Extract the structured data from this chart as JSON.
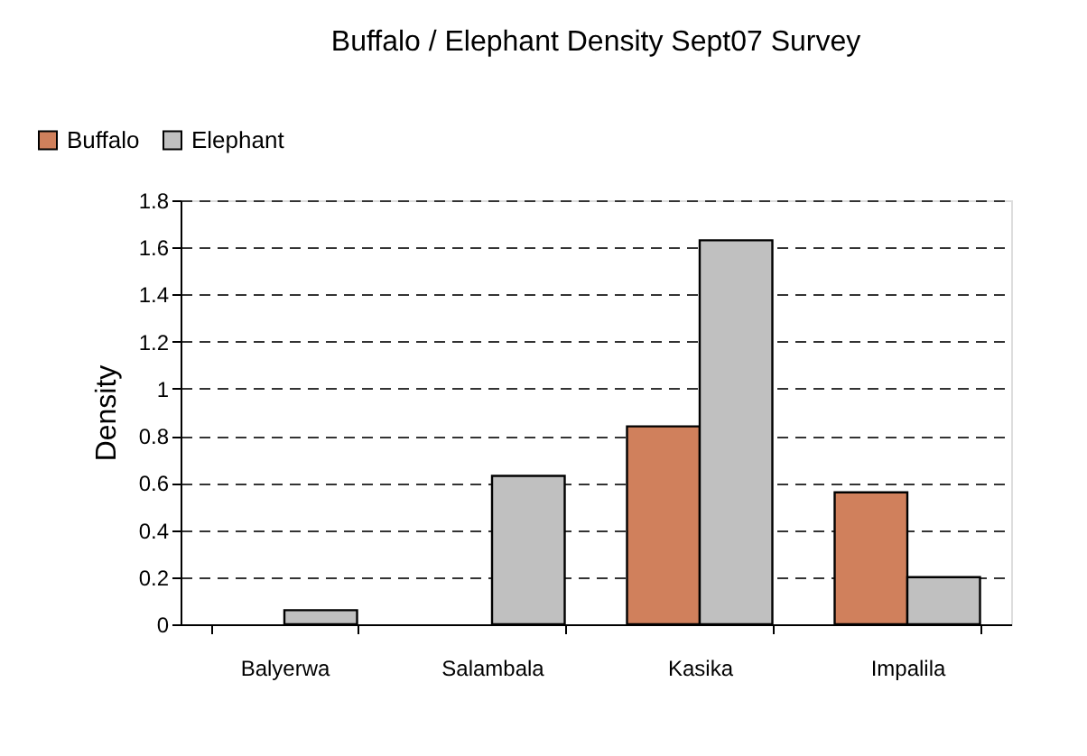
{
  "chart_data": {
    "type": "bar",
    "title": "Buffalo / Elephant Density Sept07 Survey",
    "ylabel": "Density",
    "categories": [
      "Balyerwa",
      "Salambala",
      "Kasika",
      "Impalila"
    ],
    "series": [
      {
        "name": "Buffalo",
        "color": "#d0805c",
        "values": [
          null,
          null,
          0.84,
          0.56
        ]
      },
      {
        "name": "Elephant",
        "color": "#c0c0c0",
        "values": [
          0.06,
          0.63,
          1.63,
          0.2
        ]
      }
    ],
    "ylim": [
      0,
      1.8
    ],
    "yticks": [
      0,
      0.2,
      0.4,
      0.6,
      0.8,
      1,
      1.2,
      1.4,
      1.6,
      1.8
    ],
    "grid": "y",
    "legend": "top left"
  }
}
